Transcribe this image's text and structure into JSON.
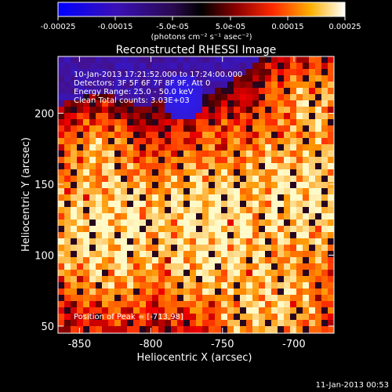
{
  "colorbar": {
    "tick_labels": [
      "-0.00025",
      "-0.00015",
      "-5.0e-05",
      "5.0e-05",
      "0.00015",
      "0.00025"
    ],
    "unit_label": "(photons cm⁻² s⁻¹ asec⁻²)",
    "range": [
      -0.00025,
      0.00025
    ]
  },
  "plot": {
    "title": "Reconstructed RHESSI Image",
    "info_lines": [
      "10-Jan-2013 17:21:52.000 to 17:24:00.000",
      "Detectors: 3F 5F 6F 7F 8F 9F, Att 0",
      "Energy Range: 25.0 - 50.0 keV",
      "Clean     Total counts: 3.03E+03"
    ],
    "peak_label": "Position of Peak = [-713,98]",
    "x_axis": {
      "label": "Heliocentric X (arcsec)",
      "ticks": [
        "-850",
        "-800",
        "-750",
        "-700"
      ],
      "range": [
        -865,
        -672
      ]
    },
    "y_axis": {
      "label": "Heliocentric Y (arcsec)",
      "ticks": [
        "50",
        "100",
        "150",
        "200"
      ],
      "range": [
        45,
        240
      ]
    }
  },
  "footer": {
    "timestamp": "11-Jan-2013 00:53"
  },
  "colors": {
    "background": "#000000",
    "text": "#ffffff",
    "low": "#0000ff",
    "mid": "#000000",
    "high": "#ffffff"
  }
}
